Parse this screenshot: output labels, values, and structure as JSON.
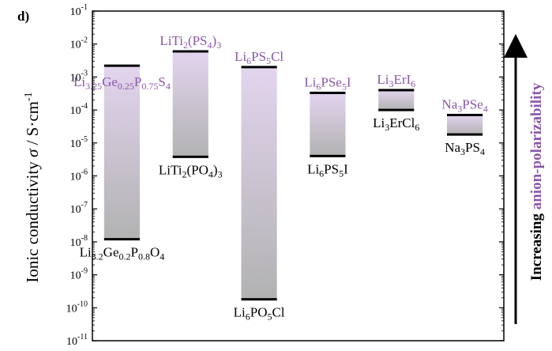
{
  "panel_label": "d)",
  "colors": {
    "purple": "#8a57a8",
    "bar_top": "#e2d4ee",
    "bar_bottom": "#b2b2b2",
    "axis": "#000000"
  },
  "chart_data": {
    "type": "bar",
    "subtype": "floating-range",
    "ylabel": {
      "main": "Ionic conductivity ",
      "sym": "σ",
      "unit": " / S·cm",
      "sup": "-1"
    },
    "right_annotation": {
      "prefix": "Increasing ",
      "emphasis": "anion-polarizability"
    },
    "y_scale": "log",
    "ylim_exp": [
      -11,
      -1
    ],
    "ytick_labels": [
      {
        "base": "10",
        "exp": "-1"
      },
      {
        "base": "10",
        "exp": "-2"
      },
      {
        "base": "10",
        "exp": "-3"
      },
      {
        "base": "10",
        "exp": "-4"
      },
      {
        "base": "10",
        "exp": "-5"
      },
      {
        "base": "10",
        "exp": "-6"
      },
      {
        "base": "10",
        "exp": "-7"
      },
      {
        "base": "10",
        "exp": "-8"
      },
      {
        "base": "10",
        "exp": "-9"
      },
      {
        "base": "10",
        "exp": "-10"
      },
      {
        "base": "10",
        "exp": "-11"
      }
    ],
    "bars": [
      {
        "high": 0.0022,
        "low": 1.2e-08,
        "high_label": [
          [
            "Li",
            ""
          ],
          [
            "3.25",
            "sub"
          ],
          [
            "Ge",
            ""
          ],
          [
            "0.25",
            "sub"
          ],
          [
            "P",
            ""
          ],
          [
            "0.75",
            "sub"
          ],
          [
            "S",
            ""
          ],
          [
            "4",
            "sub"
          ]
        ],
        "low_label": [
          [
            "Li",
            ""
          ],
          [
            "3.2",
            "sub"
          ],
          [
            "Ge",
            ""
          ],
          [
            "0.2",
            "sub"
          ],
          [
            "P",
            ""
          ],
          [
            "0.8",
            "sub"
          ],
          [
            "O",
            ""
          ],
          [
            "4",
            "sub"
          ]
        ]
      },
      {
        "high": 0.006,
        "low": 3.8e-06,
        "high_label": [
          [
            "LiTi",
            ""
          ],
          [
            "2",
            "sub"
          ],
          [
            "(PS",
            ""
          ],
          [
            "4",
            "sub"
          ],
          [
            ")",
            ""
          ],
          [
            "3",
            "sub"
          ]
        ],
        "low_label": [
          [
            "LiTi",
            ""
          ],
          [
            "2",
            "sub"
          ],
          [
            "(PO",
            ""
          ],
          [
            "4",
            "sub"
          ],
          [
            ")",
            ""
          ],
          [
            "3",
            "sub"
          ]
        ]
      },
      {
        "high": 0.002,
        "low": 1.8e-10,
        "high_label": [
          [
            "Li",
            ""
          ],
          [
            "6",
            "sub"
          ],
          [
            "PS",
            ""
          ],
          [
            "5",
            "sub"
          ],
          [
            "Cl",
            ""
          ]
        ],
        "low_label": [
          [
            "Li",
            ""
          ],
          [
            "6",
            "sub"
          ],
          [
            "PO",
            ""
          ],
          [
            "5",
            "sub"
          ],
          [
            "Cl",
            ""
          ]
        ]
      },
      {
        "high": 0.00033,
        "low": 4e-06,
        "high_label": [
          [
            "Li",
            ""
          ],
          [
            "6",
            "sub"
          ],
          [
            "PSe",
            ""
          ],
          [
            "5",
            "sub"
          ],
          [
            "I",
            ""
          ]
        ],
        "low_label": [
          [
            "Li",
            ""
          ],
          [
            "6",
            "sub"
          ],
          [
            "PS",
            ""
          ],
          [
            "5",
            "sub"
          ],
          [
            "I",
            ""
          ]
        ]
      },
      {
        "high": 0.0004,
        "low": 0.0001,
        "high_label": [
          [
            "Li",
            ""
          ],
          [
            "3",
            "sub"
          ],
          [
            "ErI",
            ""
          ],
          [
            "6",
            "sub"
          ]
        ],
        "low_label": [
          [
            "Li",
            ""
          ],
          [
            "3",
            "sub"
          ],
          [
            "ErCl",
            ""
          ],
          [
            "6",
            "sub"
          ]
        ]
      },
      {
        "high": 7e-05,
        "low": 1.8e-05,
        "high_label": [
          [
            "Na",
            ""
          ],
          [
            "3",
            "sub"
          ],
          [
            "PSe",
            ""
          ],
          [
            "4",
            "sub"
          ]
        ],
        "low_label": [
          [
            "Na",
            ""
          ],
          [
            "3",
            "sub"
          ],
          [
            "PS",
            ""
          ],
          [
            "4",
            "sub"
          ]
        ]
      }
    ]
  }
}
